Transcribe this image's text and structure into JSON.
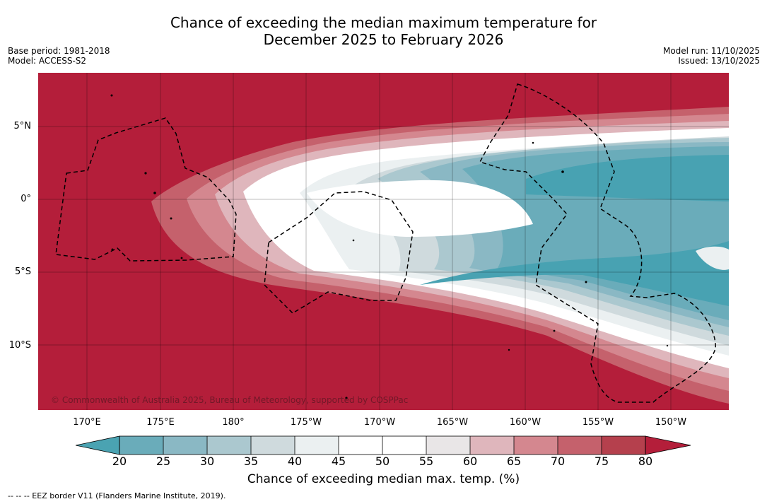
{
  "title_line1": "Chance of exceeding the median maximum temperature for",
  "title_line2": "December 2025 to February 2026",
  "meta_left": {
    "base_period": "Base period: 1981-2018",
    "model": "Model: ACCESS-S2"
  },
  "meta_right": {
    "model_run": "Model run: 11/10/2025",
    "issued": "Issued: 13/10/2025"
  },
  "lat_labels": [
    "5°N",
    "0°",
    "5°S",
    "10°S"
  ],
  "lon_labels": [
    "170°E",
    "175°E",
    "180°",
    "175°W",
    "170°W",
    "165°W",
    "160°W",
    "155°W",
    "150°W"
  ],
  "colorbar": {
    "ticks": [
      "20",
      "25",
      "30",
      "35",
      "40",
      "45",
      "50",
      "55",
      "60",
      "65",
      "70",
      "75",
      "80"
    ],
    "colors": [
      "#4aa3b2",
      "#6aacba",
      "#8ab8c4",
      "#abc8cf",
      "#cfdadd",
      "#ebf0f1",
      "#ffffff",
      "#ffffff",
      "#e9e6e7",
      "#dfb6bc",
      "#d4878f",
      "#c5616c",
      "#b5404d",
      "#b41e3a"
    ],
    "title": "Chance of exceeding median max. temp. (%)"
  },
  "legend_note": "--  --  -- EEZ border V11 (Flanders Marine Institute, 2019).",
  "copyright": "© Commonwealth of Australia 2025, Bureau of Meteorology, supported by COSPPac",
  "map_colors": {
    "hot": "#b41e3a",
    "cool": "#48a2b2"
  }
}
